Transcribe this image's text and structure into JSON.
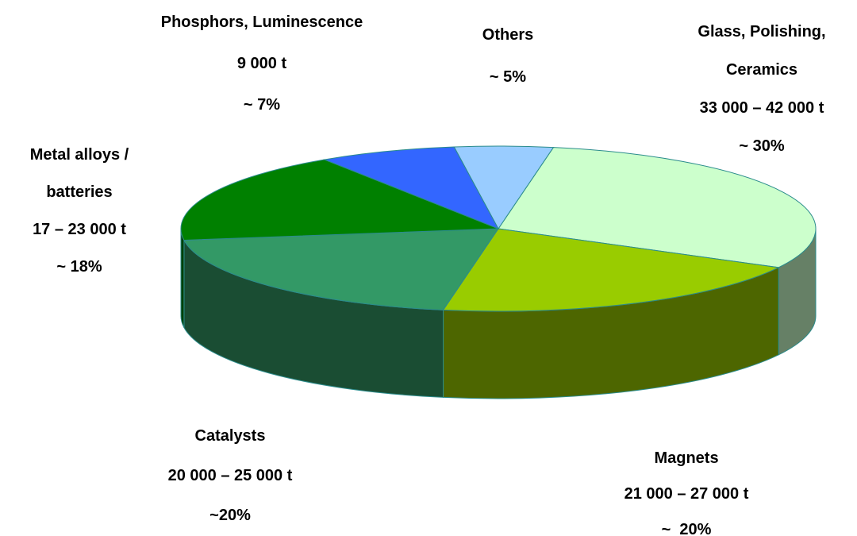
{
  "chart_data": {
    "type": "pie",
    "categories": [
      "Glass, Polishing, Ceramics",
      "Magnets",
      "Catalysts",
      "Metal alloys / batteries",
      "Phosphors, Luminescence",
      "Others"
    ],
    "details": [
      "33 000 – 42 000 t",
      "21 000 – 27 000 t",
      "20 000 – 25 000 t",
      "17 – 23 000 t",
      "9 000 t",
      null
    ],
    "values": [
      30,
      20,
      20,
      18,
      7,
      5
    ],
    "value_labels": [
      "~ 30%",
      "~  20%",
      "~20%",
      "~ 18%",
      "~ 7%",
      "~ 5%"
    ],
    "colors": [
      "#ccffcc",
      "#99cc00",
      "#339966",
      "#008000",
      "#3366ff",
      "#99ccff"
    ]
  }
}
